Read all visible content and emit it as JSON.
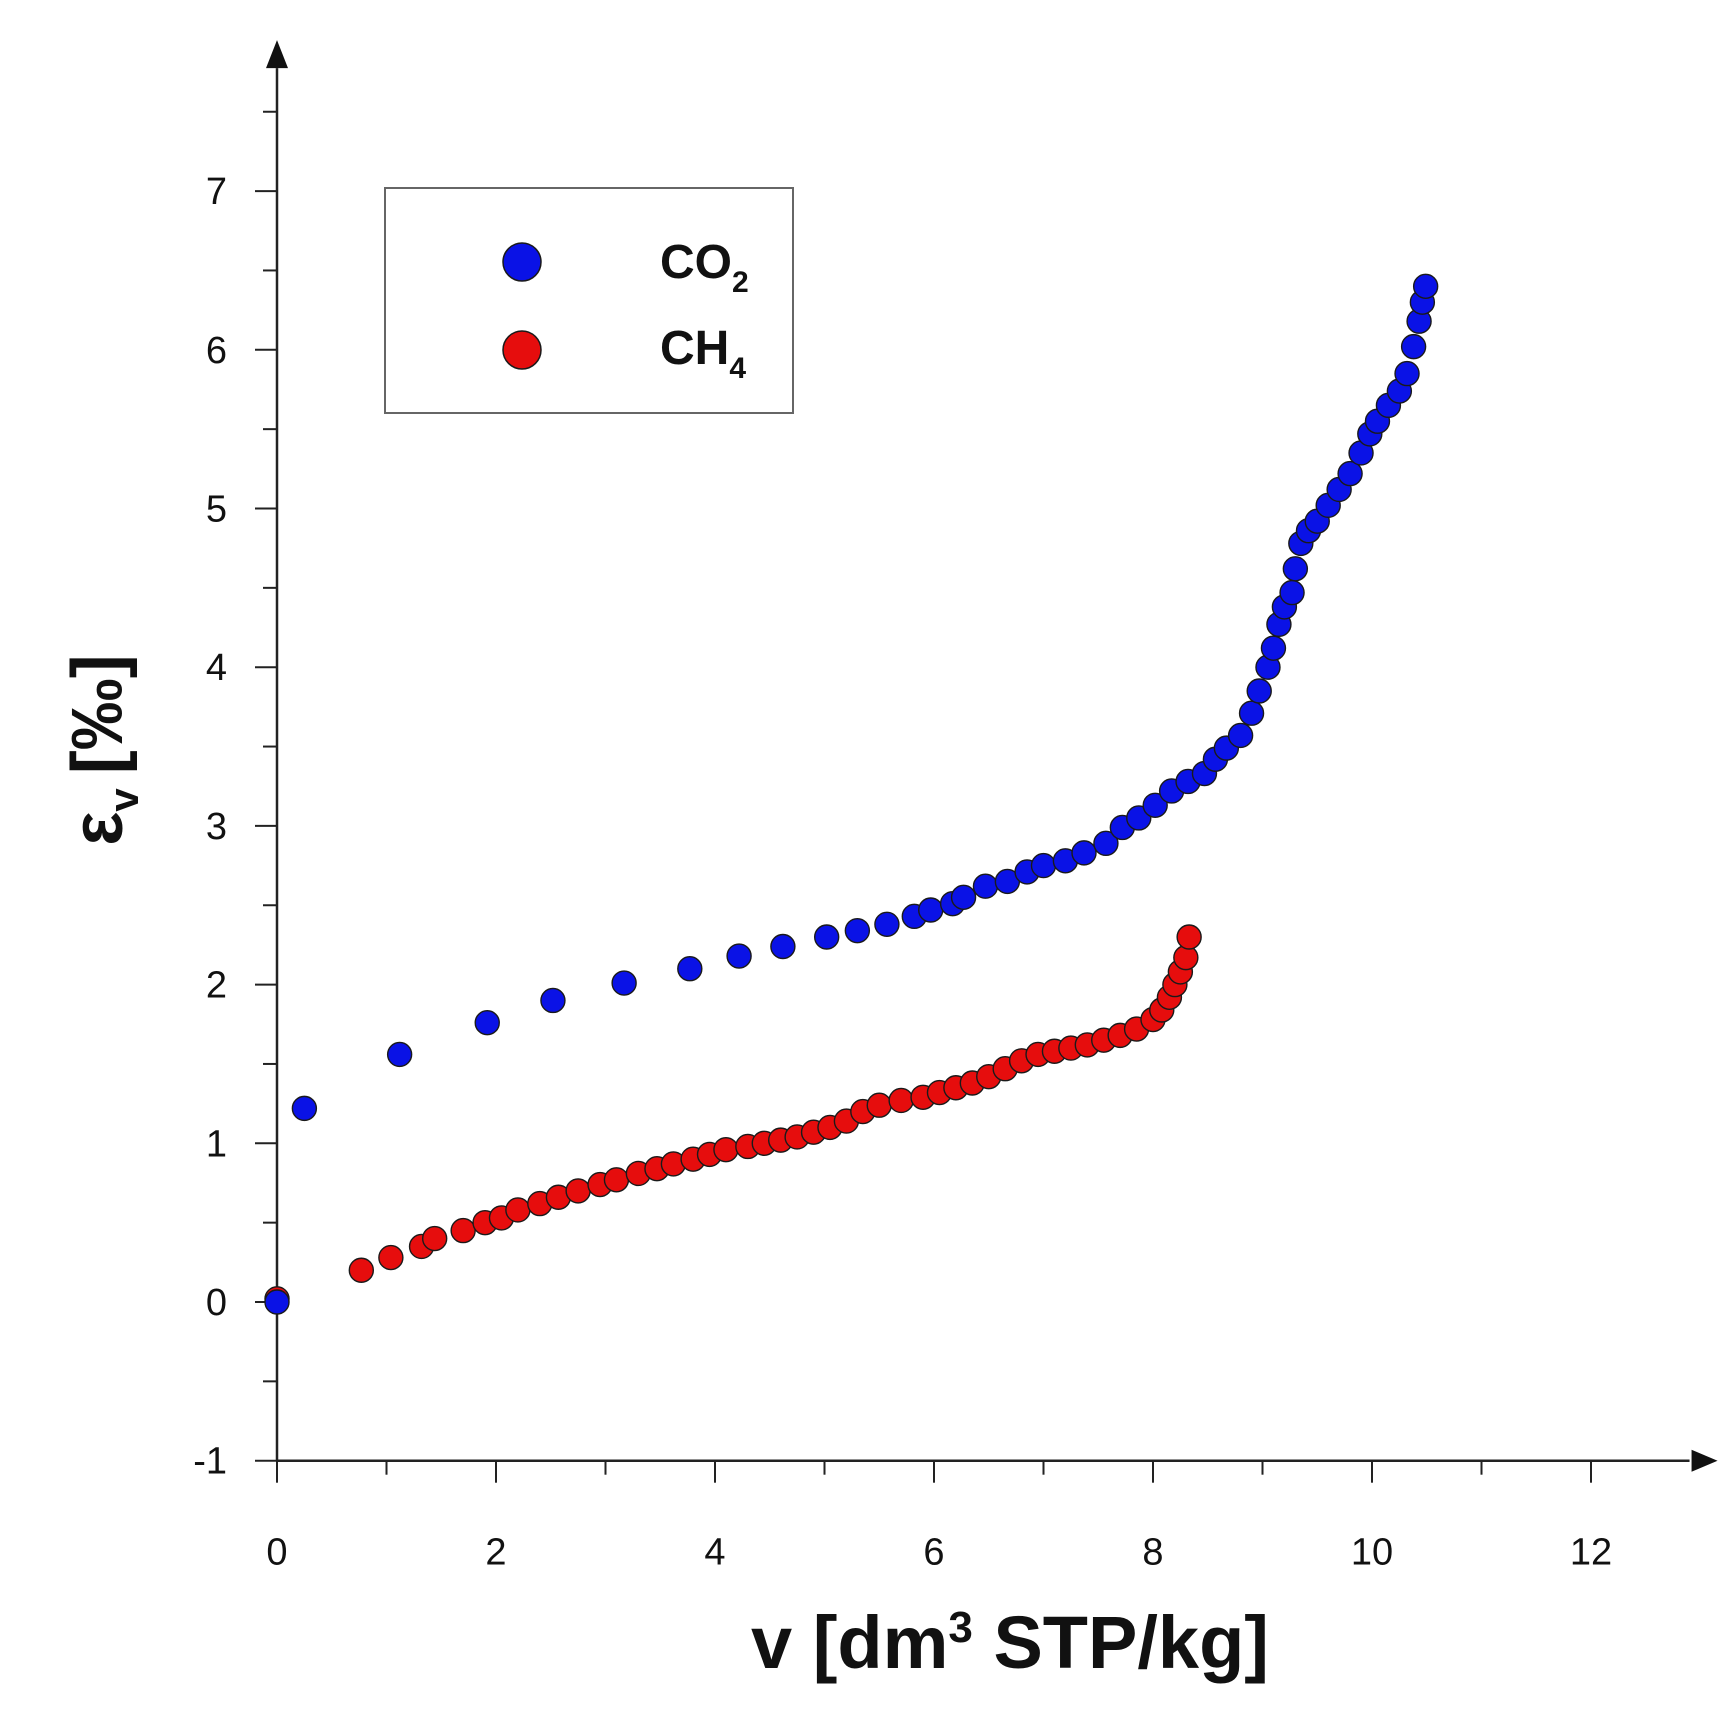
{
  "chart_data": {
    "type": "scatter",
    "xlim": [
      0,
      12.9
    ],
    "ylim": [
      -1,
      7.8
    ],
    "x_ticks": [
      0,
      2,
      4,
      6,
      8,
      10,
      12
    ],
    "y_ticks": [
      -1,
      0,
      1,
      2,
      3,
      4,
      5,
      6,
      7
    ],
    "x_tick_labels": [
      "0",
      "2",
      "4",
      "6",
      "8",
      "10",
      "12"
    ],
    "y_tick_labels": [
      "-1",
      "0",
      "1",
      "2",
      "3",
      "4",
      "5",
      "6",
      "7"
    ],
    "xlabel": {
      "prefix": "v [dm",
      "sup": "3",
      "suffix": " STP/kg]"
    },
    "ylabel": {
      "symbol": "ε",
      "sub": "v",
      "units": "[‰]"
    },
    "legend_position": "top-left",
    "grid": false,
    "series": [
      {
        "name": "CO2",
        "label_main": "CO",
        "label_sub": "2",
        "color": "#0a12e6",
        "points": [
          [
            0.0,
            0.0
          ],
          [
            0.25,
            1.22
          ],
          [
            1.12,
            1.56
          ],
          [
            1.92,
            1.76
          ],
          [
            2.52,
            1.9
          ],
          [
            3.17,
            2.01
          ],
          [
            3.77,
            2.1
          ],
          [
            4.22,
            2.18
          ],
          [
            4.62,
            2.24
          ],
          [
            5.02,
            2.3
          ],
          [
            5.3,
            2.34
          ],
          [
            5.57,
            2.38
          ],
          [
            5.82,
            2.43
          ],
          [
            5.97,
            2.47
          ],
          [
            6.17,
            2.51
          ],
          [
            6.27,
            2.55
          ],
          [
            6.47,
            2.62
          ],
          [
            6.67,
            2.65
          ],
          [
            6.85,
            2.71
          ],
          [
            7.0,
            2.75
          ],
          [
            7.2,
            2.78
          ],
          [
            7.37,
            2.83
          ],
          [
            7.57,
            2.89
          ],
          [
            7.72,
            2.99
          ],
          [
            7.87,
            3.05
          ],
          [
            8.02,
            3.13
          ],
          [
            8.17,
            3.22
          ],
          [
            8.32,
            3.28
          ],
          [
            8.47,
            3.33
          ],
          [
            8.57,
            3.42
          ],
          [
            8.67,
            3.49
          ],
          [
            8.8,
            3.57
          ],
          [
            8.9,
            3.71
          ],
          [
            8.97,
            3.85
          ],
          [
            9.05,
            4.0
          ],
          [
            9.1,
            4.12
          ],
          [
            9.15,
            4.27
          ],
          [
            9.2,
            4.38
          ],
          [
            9.27,
            4.47
          ],
          [
            9.3,
            4.62
          ],
          [
            9.35,
            4.78
          ],
          [
            9.42,
            4.86
          ],
          [
            9.5,
            4.92
          ],
          [
            9.6,
            5.02
          ],
          [
            9.7,
            5.12
          ],
          [
            9.8,
            5.22
          ],
          [
            9.9,
            5.35
          ],
          [
            9.98,
            5.47
          ],
          [
            10.05,
            5.55
          ],
          [
            10.15,
            5.65
          ],
          [
            10.25,
            5.74
          ],
          [
            10.32,
            5.85
          ],
          [
            10.38,
            6.02
          ],
          [
            10.43,
            6.18
          ],
          [
            10.46,
            6.3
          ],
          [
            10.49,
            6.4
          ]
        ]
      },
      {
        "name": "CH4",
        "label_main": "CH",
        "label_sub": "4",
        "color": "#e60d0d",
        "points": [
          [
            0.0,
            0.02
          ],
          [
            0.77,
            0.2
          ],
          [
            1.04,
            0.28
          ],
          [
            1.32,
            0.35
          ],
          [
            1.44,
            0.4
          ],
          [
            1.7,
            0.45
          ],
          [
            1.9,
            0.5
          ],
          [
            2.05,
            0.53
          ],
          [
            2.2,
            0.58
          ],
          [
            2.4,
            0.62
          ],
          [
            2.57,
            0.66
          ],
          [
            2.75,
            0.7
          ],
          [
            2.95,
            0.74
          ],
          [
            3.1,
            0.77
          ],
          [
            3.3,
            0.81
          ],
          [
            3.47,
            0.84
          ],
          [
            3.62,
            0.87
          ],
          [
            3.8,
            0.9
          ],
          [
            3.95,
            0.93
          ],
          [
            4.1,
            0.96
          ],
          [
            4.3,
            0.98
          ],
          [
            4.45,
            1.0
          ],
          [
            4.6,
            1.02
          ],
          [
            4.75,
            1.04
          ],
          [
            4.9,
            1.07
          ],
          [
            5.05,
            1.1
          ],
          [
            5.2,
            1.14
          ],
          [
            5.35,
            1.2
          ],
          [
            5.5,
            1.24
          ],
          [
            5.7,
            1.27
          ],
          [
            5.9,
            1.29
          ],
          [
            6.05,
            1.32
          ],
          [
            6.2,
            1.35
          ],
          [
            6.35,
            1.38
          ],
          [
            6.5,
            1.42
          ],
          [
            6.65,
            1.47
          ],
          [
            6.8,
            1.52
          ],
          [
            6.95,
            1.56
          ],
          [
            7.1,
            1.58
          ],
          [
            7.25,
            1.6
          ],
          [
            7.4,
            1.62
          ],
          [
            7.55,
            1.65
          ],
          [
            7.7,
            1.68
          ],
          [
            7.85,
            1.72
          ],
          [
            8.0,
            1.78
          ],
          [
            8.08,
            1.84
          ],
          [
            8.15,
            1.92
          ],
          [
            8.2,
            2.0
          ],
          [
            8.25,
            2.08
          ],
          [
            8.3,
            2.17
          ],
          [
            8.33,
            2.3
          ]
        ]
      }
    ]
  }
}
